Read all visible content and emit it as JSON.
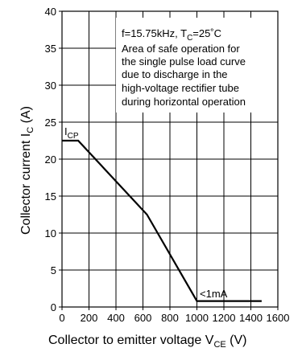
{
  "chart_data": {
    "type": "line",
    "xlabel": "Collector to emitter voltage",
    "xlabel_symbol": "V",
    "xlabel_sub": "CE",
    "xlabel_unit": "(V)",
    "ylabel": "Collector current",
    "ylabel_symbol": "I",
    "ylabel_sub": "C",
    "ylabel_unit": "(A)",
    "xlim": [
      0,
      1600
    ],
    "ylim": [
      0,
      40
    ],
    "xticks": [
      0,
      200,
      400,
      600,
      800,
      1000,
      1200,
      1400,
      1600
    ],
    "yticks": [
      0,
      5,
      10,
      15,
      20,
      25,
      30,
      35,
      40
    ],
    "grid": true,
    "series": [
      {
        "x": [
          0,
          120,
          630,
          1000,
          1000,
          1480
        ],
        "y": [
          22.5,
          22.5,
          12.5,
          0.8,
          0.8,
          0.8
        ]
      }
    ],
    "annotations": {
      "icp": {
        "main": "I",
        "sub": "CP"
      },
      "leakage": "<1mA",
      "note": [
        {
          "pre": "f=15.75kHz, T",
          "sub": "C",
          "post": "=25˚C"
        },
        {
          "pre": "Area of safe operation for"
        },
        {
          "pre": "the single pulse load curve"
        },
        {
          "pre": "due to discharge in the"
        },
        {
          "pre": "high-voltage rectifier tube"
        },
        {
          "pre": "during horizontal operation"
        }
      ]
    },
    "colors": {
      "line": "#000000",
      "grid": "#000000",
      "background": "#ffffff"
    }
  }
}
